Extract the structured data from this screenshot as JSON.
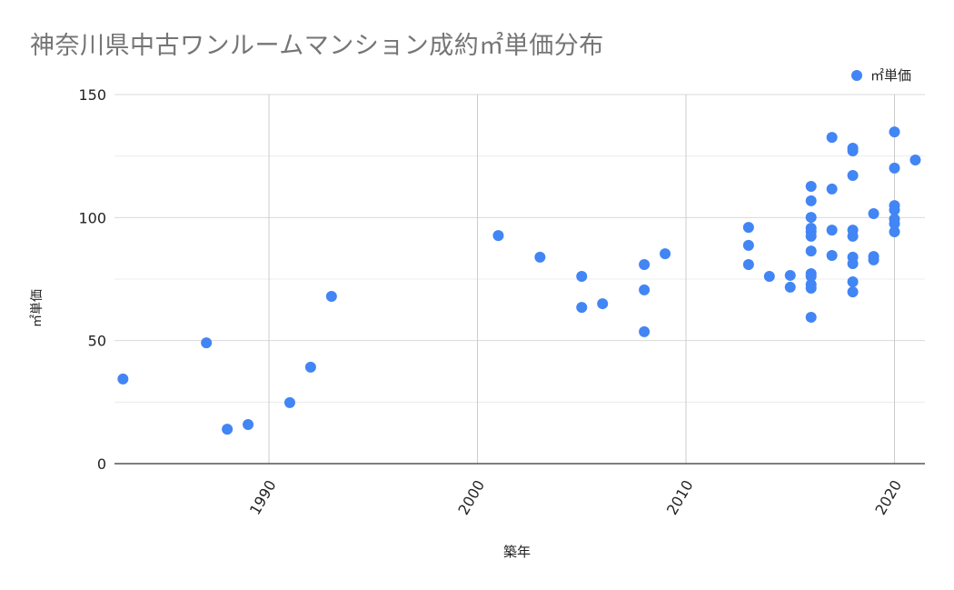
{
  "chart_data": {
    "type": "scatter",
    "title": "神奈川県中古ワンルームマンション成約㎡単価分布",
    "xlabel": "築年",
    "ylabel": "㎡単価",
    "xlim": [
      1983,
      2021.5
    ],
    "ylim": [
      0,
      150
    ],
    "x_ticks": [
      1990,
      2000,
      2010,
      2020
    ],
    "y_ticks": [
      0,
      50,
      100,
      150
    ],
    "y_minor_gridlines": [
      25,
      75,
      125
    ],
    "grid": true,
    "legend_position": "top-right",
    "series": [
      {
        "name": "㎡単価",
        "color": "#4285f4",
        "points": [
          [
            1983,
            34.4
          ],
          [
            1987,
            49.1
          ],
          [
            1988,
            14.0
          ],
          [
            1989,
            15.9
          ],
          [
            1991,
            24.8
          ],
          [
            1992,
            39.2
          ],
          [
            1993,
            68.0
          ],
          [
            2001,
            92.7
          ],
          [
            2003,
            83.9
          ],
          [
            2005,
            76.1
          ],
          [
            2005,
            63.5
          ],
          [
            2006,
            65.0
          ],
          [
            2008,
            80.9
          ],
          [
            2008,
            70.6
          ],
          [
            2008,
            53.6
          ],
          [
            2009,
            85.3
          ],
          [
            2013,
            96.0
          ],
          [
            2013,
            88.7
          ],
          [
            2013,
            80.9
          ],
          [
            2014,
            76.1
          ],
          [
            2015,
            76.5
          ],
          [
            2015,
            71.7
          ],
          [
            2016,
            112.7
          ],
          [
            2016,
            106.8
          ],
          [
            2016,
            100.1
          ],
          [
            2016,
            95.7
          ],
          [
            2016,
            94.2
          ],
          [
            2016,
            92.4
          ],
          [
            2016,
            86.4
          ],
          [
            2016,
            77.2
          ],
          [
            2016,
            76.1
          ],
          [
            2016,
            72.8
          ],
          [
            2016,
            71.3
          ],
          [
            2016,
            59.5
          ],
          [
            2017,
            132.6
          ],
          [
            2017,
            111.6
          ],
          [
            2017,
            94.9
          ],
          [
            2017,
            84.6
          ],
          [
            2018,
            128.2
          ],
          [
            2018,
            127.1
          ],
          [
            2018,
            117.1
          ],
          [
            2018,
            94.9
          ],
          [
            2018,
            92.4
          ],
          [
            2018,
            83.9
          ],
          [
            2018,
            81.3
          ],
          [
            2018,
            73.9
          ],
          [
            2018,
            69.8
          ],
          [
            2019,
            101.6
          ],
          [
            2019,
            84.2
          ],
          [
            2019,
            82.8
          ],
          [
            2020,
            134.8
          ],
          [
            2020,
            120.1
          ],
          [
            2020,
            104.9
          ],
          [
            2020,
            103.1
          ],
          [
            2020,
            99.4
          ],
          [
            2020,
            97.5
          ],
          [
            2020,
            94.2
          ],
          [
            2021,
            123.4
          ]
        ]
      }
    ]
  },
  "legend": {
    "label": "㎡単価",
    "color": "#4285f4"
  }
}
